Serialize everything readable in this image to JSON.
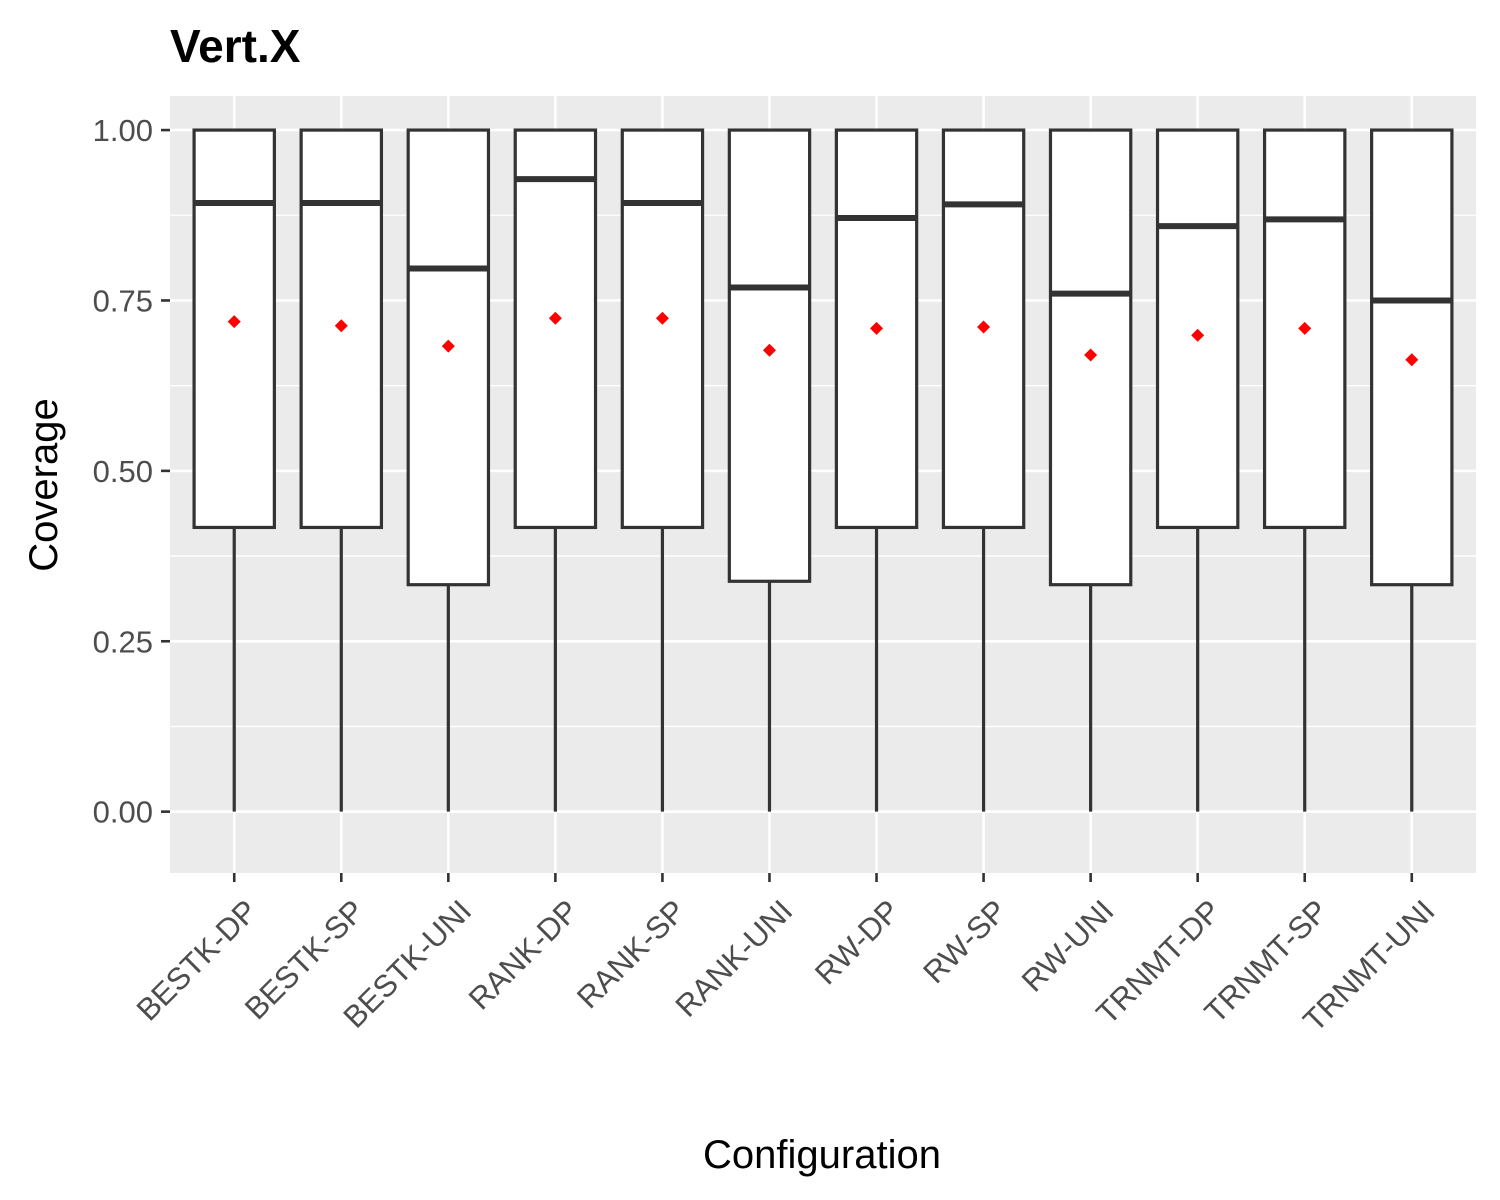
{
  "chart_data": {
    "type": "boxplot",
    "title": "Vert.X",
    "xlabel": "Configuration",
    "ylabel": "Coverage",
    "ylim": [
      -0.09,
      1.05
    ],
    "yticks": [
      0.0,
      0.25,
      0.5,
      0.75,
      1.0
    ],
    "ytick_labels": [
      "0.00",
      "0.25",
      "0.50",
      "0.75",
      "1.00"
    ],
    "grid": true,
    "categories": [
      "BESTK-DP",
      "BESTK-SP",
      "BESTK-UNI",
      "RANK-DP",
      "RANK-SP",
      "RANK-UNI",
      "RW-DP",
      "RW-SP",
      "RW-UNI",
      "TRNMT-DP",
      "TRNMT-SP",
      "TRNMT-UNI"
    ],
    "boxes": [
      {
        "min": 0.0,
        "q1": 0.417,
        "median": 0.893,
        "q3": 1.0,
        "max": 1.0,
        "mean": 0.719
      },
      {
        "min": 0.0,
        "q1": 0.417,
        "median": 0.893,
        "q3": 1.0,
        "max": 1.0,
        "mean": 0.713
      },
      {
        "min": 0.0,
        "q1": 0.333,
        "median": 0.797,
        "q3": 1.0,
        "max": 1.0,
        "mean": 0.683
      },
      {
        "min": 0.0,
        "q1": 0.417,
        "median": 0.928,
        "q3": 1.0,
        "max": 1.0,
        "mean": 0.724
      },
      {
        "min": 0.0,
        "q1": 0.417,
        "median": 0.893,
        "q3": 1.0,
        "max": 1.0,
        "mean": 0.724
      },
      {
        "min": 0.0,
        "q1": 0.338,
        "median": 0.769,
        "q3": 1.0,
        "max": 1.0,
        "mean": 0.677
      },
      {
        "min": 0.0,
        "q1": 0.417,
        "median": 0.871,
        "q3": 1.0,
        "max": 1.0,
        "mean": 0.709
      },
      {
        "min": 0.0,
        "q1": 0.417,
        "median": 0.891,
        "q3": 1.0,
        "max": 1.0,
        "mean": 0.711
      },
      {
        "min": 0.0,
        "q1": 0.333,
        "median": 0.76,
        "q3": 1.0,
        "max": 1.0,
        "mean": 0.67
      },
      {
        "min": 0.0,
        "q1": 0.417,
        "median": 0.859,
        "q3": 1.0,
        "max": 1.0,
        "mean": 0.699
      },
      {
        "min": 0.0,
        "q1": 0.417,
        "median": 0.869,
        "q3": 1.0,
        "max": 1.0,
        "mean": 0.709
      },
      {
        "min": 0.0,
        "q1": 0.333,
        "median": 0.75,
        "q3": 1.0,
        "max": 1.0,
        "mean": 0.663
      }
    ],
    "colors": {
      "panel_background": "#ebebeb",
      "grid": "#ffffff",
      "box_line": "#333333",
      "box_fill": "#ffffff",
      "mean_marker": "#ff0000",
      "tick_text": "#4d4d4d",
      "axis_ticks": "#333333"
    }
  }
}
